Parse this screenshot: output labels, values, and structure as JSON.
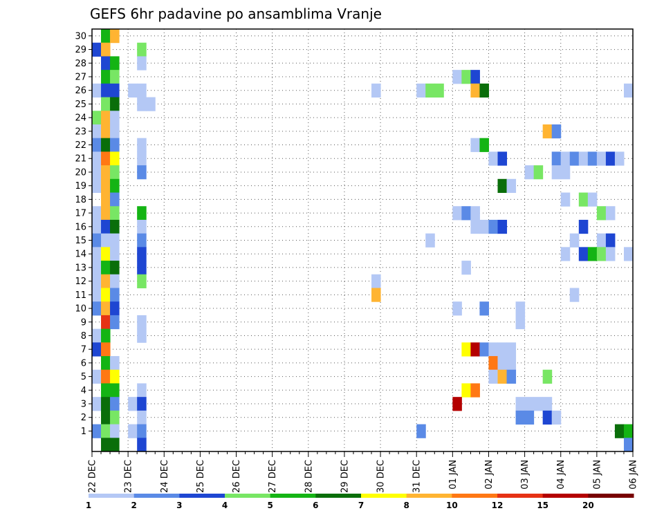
{
  "chart_data": {
    "type": "heatmap",
    "title": "GEFS 6hr padavine po ansamblima Vranje",
    "xlabel": "",
    "ylabel": "",
    "x_tick_labels": [
      "22 DEC",
      "23 DEC",
      "24 DEC",
      "25 DEC",
      "26 DEC",
      "27 DEC",
      "28 DEC",
      "29 DEC",
      "30 DEC",
      "31 DEC",
      "01 JAN",
      "02 JAN",
      "03 JAN",
      "04 JAN",
      "05 JAN",
      "06 JAN"
    ],
    "y_tick_labels": [
      "1",
      "2",
      "3",
      "4",
      "5",
      "6",
      "7",
      "8",
      "9",
      "10",
      "11",
      "12",
      "13",
      "14",
      "15",
      "16",
      "17",
      "18",
      "19",
      "20",
      "21",
      "22",
      "23",
      "24",
      "25",
      "26",
      "27",
      "28",
      "29",
      "30"
    ],
    "n_time_steps": 60,
    "n_members": 31,
    "grid": true,
    "legend": {
      "position": "bottom",
      "levels": [
        "1",
        "2",
        "3",
        "4",
        "5",
        "6",
        "7",
        "8",
        "10",
        "12",
        "15",
        "20"
      ],
      "colors": [
        "#b4c8f5",
        "#5a8ae6",
        "#1e46d2",
        "#78e664",
        "#14b414",
        "#0a6e0a",
        "#ffff00",
        "#ffb432",
        "#ff7814",
        "#e63214",
        "#b40000",
        "#780000"
      ]
    },
    "cells": [
      [
        1,
        30,
        4
      ],
      [
        2,
        30,
        7
      ],
      [
        0,
        29,
        2
      ],
      [
        1,
        29,
        7
      ],
      [
        5,
        29,
        3
      ],
      [
        1,
        28,
        2
      ],
      [
        2,
        28,
        4
      ],
      [
        5,
        28,
        0
      ],
      [
        1,
        27,
        4
      ],
      [
        2,
        27,
        3
      ],
      [
        40,
        27,
        0
      ],
      [
        41,
        27,
        3
      ],
      [
        42,
        27,
        2
      ],
      [
        0,
        26,
        0
      ],
      [
        1,
        26,
        2
      ],
      [
        2,
        26,
        2
      ],
      [
        4,
        26,
        0
      ],
      [
        5,
        26,
        0
      ],
      [
        31,
        26,
        0
      ],
      [
        36,
        26,
        0
      ],
      [
        37,
        26,
        3
      ],
      [
        38,
        26,
        3
      ],
      [
        42,
        26,
        7
      ],
      [
        43,
        26,
        5
      ],
      [
        59,
        26,
        0
      ],
      [
        1,
        25,
        3
      ],
      [
        2,
        25,
        5
      ],
      [
        5,
        25,
        0
      ],
      [
        6,
        25,
        0
      ],
      [
        0,
        24,
        3
      ],
      [
        1,
        24,
        7
      ],
      [
        2,
        24,
        0
      ],
      [
        0,
        23,
        0
      ],
      [
        1,
        23,
        7
      ],
      [
        2,
        23,
        0
      ],
      [
        50,
        23,
        7
      ],
      [
        51,
        23,
        1
      ],
      [
        0,
        22,
        1
      ],
      [
        1,
        22,
        5
      ],
      [
        2,
        22,
        1
      ],
      [
        5,
        22,
        0
      ],
      [
        42,
        22,
        0
      ],
      [
        43,
        22,
        4
      ],
      [
        0,
        21,
        0
      ],
      [
        1,
        21,
        8
      ],
      [
        2,
        21,
        6
      ],
      [
        5,
        21,
        0
      ],
      [
        44,
        21,
        0
      ],
      [
        45,
        21,
        2
      ],
      [
        51,
        21,
        1
      ],
      [
        52,
        21,
        0
      ],
      [
        53,
        21,
        1
      ],
      [
        54,
        21,
        0
      ],
      [
        55,
        21,
        1
      ],
      [
        56,
        21,
        0
      ],
      [
        57,
        21,
        2
      ],
      [
        58,
        21,
        0
      ],
      [
        0,
        20,
        0
      ],
      [
        1,
        20,
        7
      ],
      [
        2,
        20,
        3
      ],
      [
        5,
        20,
        1
      ],
      [
        48,
        20,
        0
      ],
      [
        49,
        20,
        3
      ],
      [
        51,
        20,
        0
      ],
      [
        52,
        20,
        0
      ],
      [
        0,
        19,
        0
      ],
      [
        1,
        19,
        7
      ],
      [
        2,
        19,
        4
      ],
      [
        45,
        19,
        5
      ],
      [
        46,
        19,
        0
      ],
      [
        1,
        18,
        7
      ],
      [
        2,
        18,
        1
      ],
      [
        52,
        18,
        0
      ],
      [
        54,
        18,
        3
      ],
      [
        55,
        18,
        0
      ],
      [
        0,
        17,
        0
      ],
      [
        1,
        17,
        7
      ],
      [
        2,
        17,
        3
      ],
      [
        5,
        17,
        4
      ],
      [
        40,
        17,
        0
      ],
      [
        41,
        17,
        1
      ],
      [
        42,
        17,
        0
      ],
      [
        56,
        17,
        3
      ],
      [
        57,
        17,
        0
      ],
      [
        0,
        16,
        0
      ],
      [
        1,
        16,
        2
      ],
      [
        2,
        16,
        5
      ],
      [
        5,
        16,
        0
      ],
      [
        42,
        16,
        0
      ],
      [
        43,
        16,
        0
      ],
      [
        44,
        16,
        1
      ],
      [
        45,
        16,
        2
      ],
      [
        54,
        16,
        2
      ],
      [
        0,
        15,
        1
      ],
      [
        1,
        15,
        0
      ],
      [
        2,
        15,
        0
      ],
      [
        5,
        15,
        1
      ],
      [
        37,
        15,
        0
      ],
      [
        53,
        15,
        0
      ],
      [
        56,
        15,
        0
      ],
      [
        57,
        15,
        2
      ],
      [
        0,
        14,
        0
      ],
      [
        1,
        14,
        6
      ],
      [
        2,
        14,
        0
      ],
      [
        5,
        14,
        2
      ],
      [
        52,
        14,
        0
      ],
      [
        54,
        14,
        2
      ],
      [
        55,
        14,
        4
      ],
      [
        56,
        14,
        3
      ],
      [
        57,
        14,
        0
      ],
      [
        59,
        14,
        0
      ],
      [
        0,
        13,
        0
      ],
      [
        1,
        13,
        4
      ],
      [
        2,
        13,
        5
      ],
      [
        5,
        13,
        2
      ],
      [
        41,
        13,
        0
      ],
      [
        0,
        12,
        0
      ],
      [
        1,
        12,
        7
      ],
      [
        2,
        12,
        0
      ],
      [
        5,
        12,
        3
      ],
      [
        31,
        12,
        0
      ],
      [
        0,
        11,
        0
      ],
      [
        1,
        11,
        6
      ],
      [
        2,
        11,
        1
      ],
      [
        31,
        11,
        7
      ],
      [
        53,
        11,
        0
      ],
      [
        0,
        10,
        1
      ],
      [
        1,
        10,
        7
      ],
      [
        2,
        10,
        2
      ],
      [
        40,
        10,
        0
      ],
      [
        43,
        10,
        1
      ],
      [
        47,
        10,
        0
      ],
      [
        1,
        9,
        9
      ],
      [
        2,
        9,
        1
      ],
      [
        5,
        9,
        0
      ],
      [
        47,
        9,
        0
      ],
      [
        0,
        8,
        0
      ],
      [
        1,
        8,
        4
      ],
      [
        5,
        8,
        0
      ],
      [
        0,
        7,
        2
      ],
      [
        1,
        7,
        8
      ],
      [
        41,
        7,
        6
      ],
      [
        42,
        7,
        10
      ],
      [
        43,
        7,
        1
      ],
      [
        44,
        7,
        0
      ],
      [
        45,
        7,
        0
      ],
      [
        46,
        7,
        0
      ],
      [
        1,
        6,
        4
      ],
      [
        2,
        6,
        0
      ],
      [
        44,
        6,
        8
      ],
      [
        45,
        6,
        0
      ],
      [
        46,
        6,
        0
      ],
      [
        0,
        5,
        0
      ],
      [
        1,
        5,
        8
      ],
      [
        2,
        5,
        6
      ],
      [
        44,
        5,
        0
      ],
      [
        45,
        5,
        7
      ],
      [
        46,
        5,
        1
      ],
      [
        50,
        5,
        3
      ],
      [
        1,
        4,
        4
      ],
      [
        2,
        4,
        4
      ],
      [
        5,
        4,
        0
      ],
      [
        41,
        4,
        6
      ],
      [
        42,
        4,
        8
      ],
      [
        0,
        3,
        0
      ],
      [
        1,
        3,
        5
      ],
      [
        2,
        3,
        1
      ],
      [
        4,
        3,
        0
      ],
      [
        5,
        3,
        2
      ],
      [
        40,
        3,
        10
      ],
      [
        47,
        3,
        0
      ],
      [
        48,
        3,
        0
      ],
      [
        49,
        3,
        0
      ],
      [
        50,
        3,
        0
      ],
      [
        1,
        2,
        5
      ],
      [
        2,
        2,
        3
      ],
      [
        5,
        2,
        0
      ],
      [
        47,
        2,
        1
      ],
      [
        48,
        2,
        1
      ],
      [
        50,
        2,
        2
      ],
      [
        51,
        2,
        0
      ],
      [
        0,
        1,
        1
      ],
      [
        1,
        1,
        3
      ],
      [
        2,
        1,
        0
      ],
      [
        4,
        1,
        0
      ],
      [
        5,
        1,
        1
      ],
      [
        36,
        1,
        1
      ],
      [
        58,
        1,
        5
      ],
      [
        59,
        1,
        4
      ],
      [
        1,
        0,
        5
      ],
      [
        2,
        0,
        5
      ],
      [
        5,
        0,
        2
      ],
      [
        59,
        0,
        1
      ]
    ]
  }
}
